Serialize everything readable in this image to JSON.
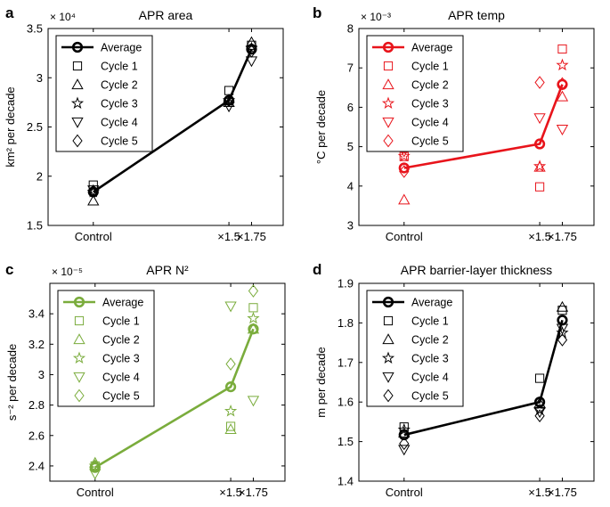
{
  "colors": {
    "black": "#000000",
    "red": "#e8141b",
    "green": "#7aac3c"
  },
  "legend_entries": [
    "Average",
    "Cycle 1",
    "Cycle 2",
    "Cycle 3",
    "Cycle 4",
    "Cycle 5"
  ],
  "chart_data": [
    {
      "panel_label": "a",
      "type": "line",
      "title": "APR area",
      "ylabel": "km² per decade",
      "multiplier": "× 10⁴",
      "x_positions": [
        0,
        1.5,
        1.75
      ],
      "x_ticks": [
        "Control",
        "×1.5",
        "×1.75"
      ],
      "xlim": [
        -0.5,
        2.1
      ],
      "ylim": [
        1.5,
        3.5
      ],
      "y_ticks": [
        1.5,
        2,
        2.5,
        3,
        3.5
      ],
      "color": "#000000",
      "legend_placement": "top-left",
      "grid": false,
      "series": [
        {
          "name": "Average",
          "values": [
            1.84,
            2.77,
            3.29
          ]
        },
        {
          "name": "Cycle 1",
          "values": [
            1.91,
            2.87,
            3.33
          ]
        },
        {
          "name": "Cycle 2",
          "values": [
            1.75,
            2.75,
            3.36
          ]
        },
        {
          "name": "Cycle 3",
          "values": [
            1.84,
            2.77,
            3.3
          ]
        },
        {
          "name": "Cycle 4",
          "values": [
            1.86,
            2.71,
            3.17
          ]
        },
        {
          "name": "Cycle 5",
          "values": [
            1.85,
            2.77,
            3.27
          ]
        }
      ]
    },
    {
      "panel_label": "b",
      "type": "line",
      "title": "APR temp",
      "ylabel": "°C per decade",
      "multiplier": "× 10⁻³",
      "x_positions": [
        0,
        1.5,
        1.75
      ],
      "x_ticks": [
        "Control",
        "×1.5",
        "×1.75"
      ],
      "xlim": [
        -0.5,
        2.1
      ],
      "ylim": [
        3,
        8
      ],
      "y_ticks": [
        3,
        4,
        5,
        6,
        7,
        8
      ],
      "color": "#e8141b",
      "legend_placement": "top-left",
      "grid": false,
      "series": [
        {
          "name": "Average",
          "values": [
            4.46,
            5.07,
            6.58
          ]
        },
        {
          "name": "Cycle 1",
          "values": [
            4.75,
            3.98,
            7.48
          ]
        },
        {
          "name": "Cycle 2",
          "values": [
            3.65,
            4.48,
            6.27
          ]
        },
        {
          "name": "Cycle 3",
          "values": [
            4.76,
            4.5,
            7.07
          ]
        },
        {
          "name": "Cycle 4",
          "values": [
            4.88,
            5.73,
            5.44
          ]
        },
        {
          "name": "Cycle 5",
          "values": [
            4.37,
            6.63,
            6.6
          ]
        }
      ]
    },
    {
      "panel_label": "c",
      "type": "line",
      "title": "APR N²",
      "ylabel": "s⁻² per decade",
      "multiplier": "× 10⁻⁵",
      "x_positions": [
        0,
        1.5,
        1.75
      ],
      "x_ticks": [
        "Control",
        "×1.5",
        "×1.75"
      ],
      "xlim": [
        -0.5,
        2.1
      ],
      "ylim": [
        2.3,
        3.6
      ],
      "y_ticks": [
        2.4,
        2.6,
        2.8,
        3,
        3.2,
        3.4
      ],
      "color": "#7aac3c",
      "legend_placement": "top-left",
      "grid": false,
      "series": [
        {
          "name": "Average",
          "values": [
            2.39,
            2.92,
            3.3
          ]
        },
        {
          "name": "Cycle 1",
          "values": [
            2.4,
            2.66,
            3.44
          ]
        },
        {
          "name": "Cycle 2",
          "values": [
            2.42,
            2.64,
            3.3
          ]
        },
        {
          "name": "Cycle 3",
          "values": [
            2.4,
            2.76,
            3.37
          ]
        },
        {
          "name": "Cycle 4",
          "values": [
            2.35,
            3.45,
            2.83
          ]
        },
        {
          "name": "Cycle 5",
          "values": [
            2.4,
            3.07,
            3.55
          ]
        }
      ]
    },
    {
      "panel_label": "d",
      "type": "line",
      "title": "APR barrier-layer thickness",
      "ylabel": "m per decade",
      "multiplier": "",
      "x_positions": [
        0,
        1.5,
        1.75
      ],
      "x_ticks": [
        "Control",
        "×1.5",
        "×1.75"
      ],
      "xlim": [
        -0.5,
        2.1
      ],
      "ylim": [
        1.4,
        1.9
      ],
      "y_ticks": [
        1.4,
        1.5,
        1.6,
        1.7,
        1.8,
        1.9
      ],
      "color": "#000000",
      "legend_placement": "top-left",
      "grid": false,
      "series": [
        {
          "name": "Average",
          "values": [
            1.517,
            1.6,
            1.807
          ]
        },
        {
          "name": "Cycle 1",
          "values": [
            1.537,
            1.66,
            1.832
          ]
        },
        {
          "name": "Cycle 2",
          "values": [
            1.522,
            1.597,
            1.84
          ]
        },
        {
          "name": "Cycle 3",
          "values": [
            1.53,
            1.58,
            1.775
          ]
        },
        {
          "name": "Cycle 4",
          "values": [
            1.48,
            1.575,
            1.786
          ]
        },
        {
          "name": "Cycle 5",
          "values": [
            1.495,
            1.565,
            1.757
          ]
        }
      ]
    }
  ]
}
